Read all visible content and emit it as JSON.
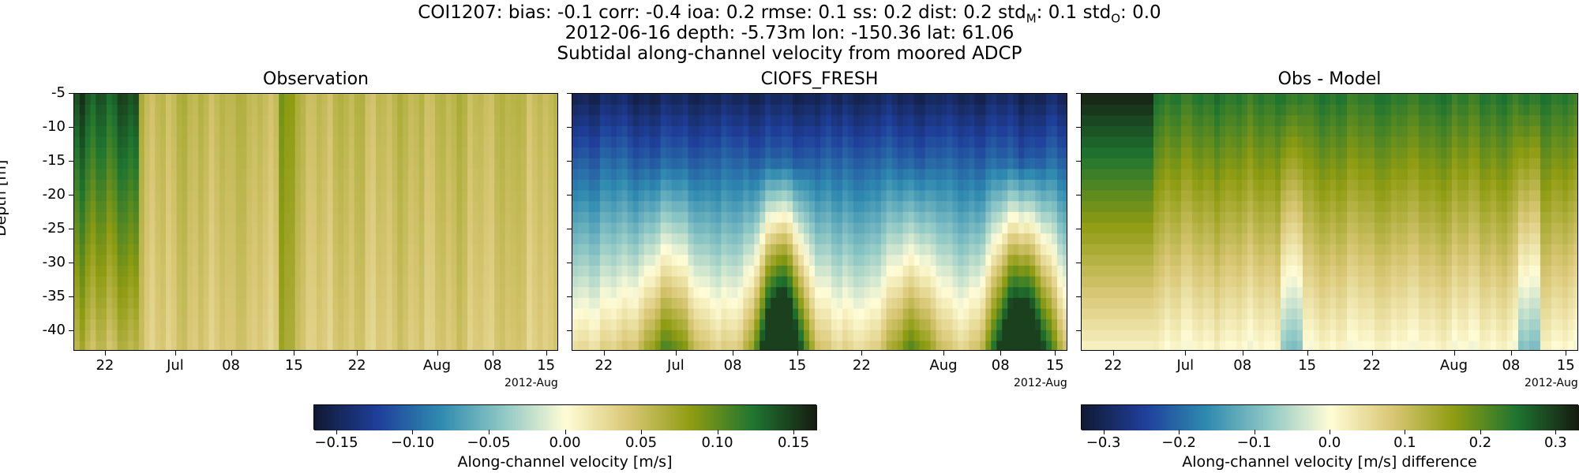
{
  "figure": {
    "title_line1": "COI1207: bias: -0.1  corr: -0.4  ioa: 0.2  rmse: 0.1  ss: 0.2  dist: 0.2  std",
    "title_sub_m": "M",
    "title_mid": ": 0.1  std",
    "title_sub_o": "O",
    "title_end": ": 0.0",
    "title_line2": "2012-06-16 depth: -5.73m lon: -150.36 lat: 61.06",
    "title_line3": "Subtidal along-channel velocity from moored ADCP",
    "ylabel": "Depth [m]",
    "x_offset_label": "2012-Aug"
  },
  "chart_data": [
    {
      "type": "heatmap",
      "title": "Observation",
      "ylabel": "Depth [m]",
      "x_tick_labels": [
        "22",
        "Jul",
        "08",
        "15",
        "22",
        "Aug",
        "08",
        "15"
      ],
      "y_tick_labels": [
        "-5",
        "-10",
        "-15",
        "-20",
        "-25",
        "-30",
        "-35",
        "-40"
      ],
      "y_ticks": [
        -5,
        -10,
        -15,
        -20,
        -25,
        -30,
        -35,
        -40
      ],
      "ylim": [
        -43,
        -5
      ],
      "colorbar": "velocity",
      "colormap": "delta-like (navy-blue-teal-white-yellow-olive-green-black)",
      "vlim": [
        -0.165,
        0.165
      ]
    },
    {
      "type": "heatmap",
      "title": "CIOFS_FRESH",
      "x_tick_labels": [
        "22",
        "Jul",
        "08",
        "15",
        "22",
        "Aug",
        "08",
        "15"
      ],
      "y_ticks": [
        -5,
        -10,
        -15,
        -20,
        -25,
        -30,
        -35,
        -40
      ],
      "ylim": [
        -43,
        -5
      ],
      "colorbar": "velocity",
      "vlim": [
        -0.165,
        0.165
      ]
    },
    {
      "type": "heatmap",
      "title": "Obs - Model",
      "x_tick_labels": [
        "22",
        "Jul",
        "08",
        "15",
        "22",
        "Aug",
        "08",
        "15"
      ],
      "y_ticks": [
        -5,
        -10,
        -15,
        -20,
        -25,
        -30,
        -35,
        -40
      ],
      "ylim": [
        -43,
        -5
      ],
      "colorbar": "difference",
      "vlim": [
        -0.33,
        0.33
      ]
    }
  ],
  "colorbars": {
    "velocity": {
      "label": "Along-channel velocity [m/s]",
      "ticks": [
        "−0.15",
        "−0.10",
        "−0.05",
        "0.00",
        "0.05",
        "0.10",
        "0.15"
      ],
      "tick_values": [
        -0.15,
        -0.1,
        -0.05,
        0.0,
        0.05,
        0.1,
        0.15
      ],
      "range": [
        -0.165,
        0.165
      ]
    },
    "difference": {
      "label": "Along-channel velocity [m/s] difference",
      "ticks": [
        "−0.3",
        "−0.2",
        "−0.1",
        "0.0",
        "0.1",
        "0.2",
        "0.3"
      ],
      "tick_values": [
        -0.3,
        -0.2,
        -0.1,
        0.0,
        0.1,
        0.2,
        0.3
      ],
      "range": [
        -0.33,
        0.33
      ]
    }
  },
  "colormap_stops": [
    "#111a35",
    "#1f3f9a",
    "#2f8ab0",
    "#8fc8c5",
    "#fffcd6",
    "#d9c775",
    "#8f9c12",
    "#1f7530",
    "#161c11"
  ]
}
